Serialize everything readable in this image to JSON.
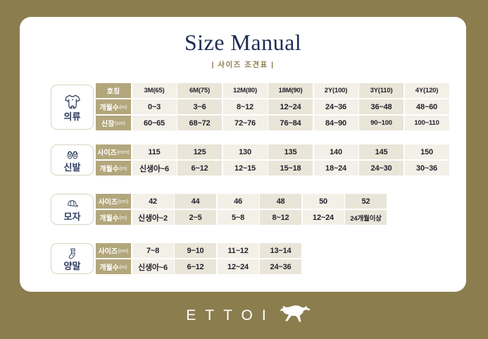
{
  "header": {
    "title": "Size Manual",
    "subtitle": "| 사이즈 조견표 |"
  },
  "footer": {
    "brand": "ETTOI",
    "logo_icon": "leaping-horse-icon"
  },
  "colors": {
    "background_olive": "#8C7D4F",
    "panel_white": "#FFFFFF",
    "row_header_tan": "#B2A67C",
    "cell_light": "#F3F0E8",
    "cell_dark": "#E9E5D8",
    "title_navy": "#1F2C55",
    "icon_navy": "#2E3C60"
  },
  "sections": [
    {
      "id": "clothing",
      "label": "의류",
      "icon": "onesie-icon",
      "rows": [
        {
          "label": "호칭",
          "unit": "",
          "values": [
            "3M(65)",
            "6M(75)",
            "12M(80)",
            "18M(90)",
            "2Y(100)",
            "3Y(110)",
            "4Y(120)"
          ]
        },
        {
          "label": "개월수",
          "unit": "(m)",
          "values": [
            "0~3",
            "3~6",
            "8~12",
            "12~24",
            "24~36",
            "36~48",
            "48~60"
          ]
        },
        {
          "label": "신장",
          "unit": "(cm)",
          "values": [
            "60~65",
            "68~72",
            "72~76",
            "76~84",
            "84~90",
            "90~100",
            "100~110"
          ]
        }
      ]
    },
    {
      "id": "shoes",
      "label": "신발",
      "icon": "baby-shoes-icon",
      "rows": [
        {
          "label": "사이즈",
          "unit": "(mm)",
          "values": [
            "115",
            "125",
            "130",
            "135",
            "140",
            "145",
            "150"
          ]
        },
        {
          "label": "개월수",
          "unit": "(m)",
          "values": [
            "신생아~6",
            "6~12",
            "12~15",
            "15~18",
            "18~24",
            "24~30",
            "30~36"
          ]
        }
      ]
    },
    {
      "id": "hat",
      "label": "모자",
      "icon": "cap-icon",
      "rows": [
        {
          "label": "사이즈",
          "unit": "(cm)",
          "values": [
            "42",
            "44",
            "46",
            "48",
            "50",
            "52"
          ]
        },
        {
          "label": "개월수",
          "unit": "(m)",
          "values": [
            "신생아~2",
            "2~5",
            "5~8",
            "8~12",
            "12~24",
            "24개월이상"
          ]
        }
      ]
    },
    {
      "id": "socks",
      "label": "양말",
      "icon": "sock-icon",
      "rows": [
        {
          "label": "사이즈",
          "unit": "(cm)",
          "values": [
            "7~8",
            "9~10",
            "11~12",
            "13~14"
          ]
        },
        {
          "label": "개월수",
          "unit": "(m)",
          "values": [
            "신생아~6",
            "6~12",
            "12~24",
            "24~36"
          ]
        }
      ]
    }
  ]
}
